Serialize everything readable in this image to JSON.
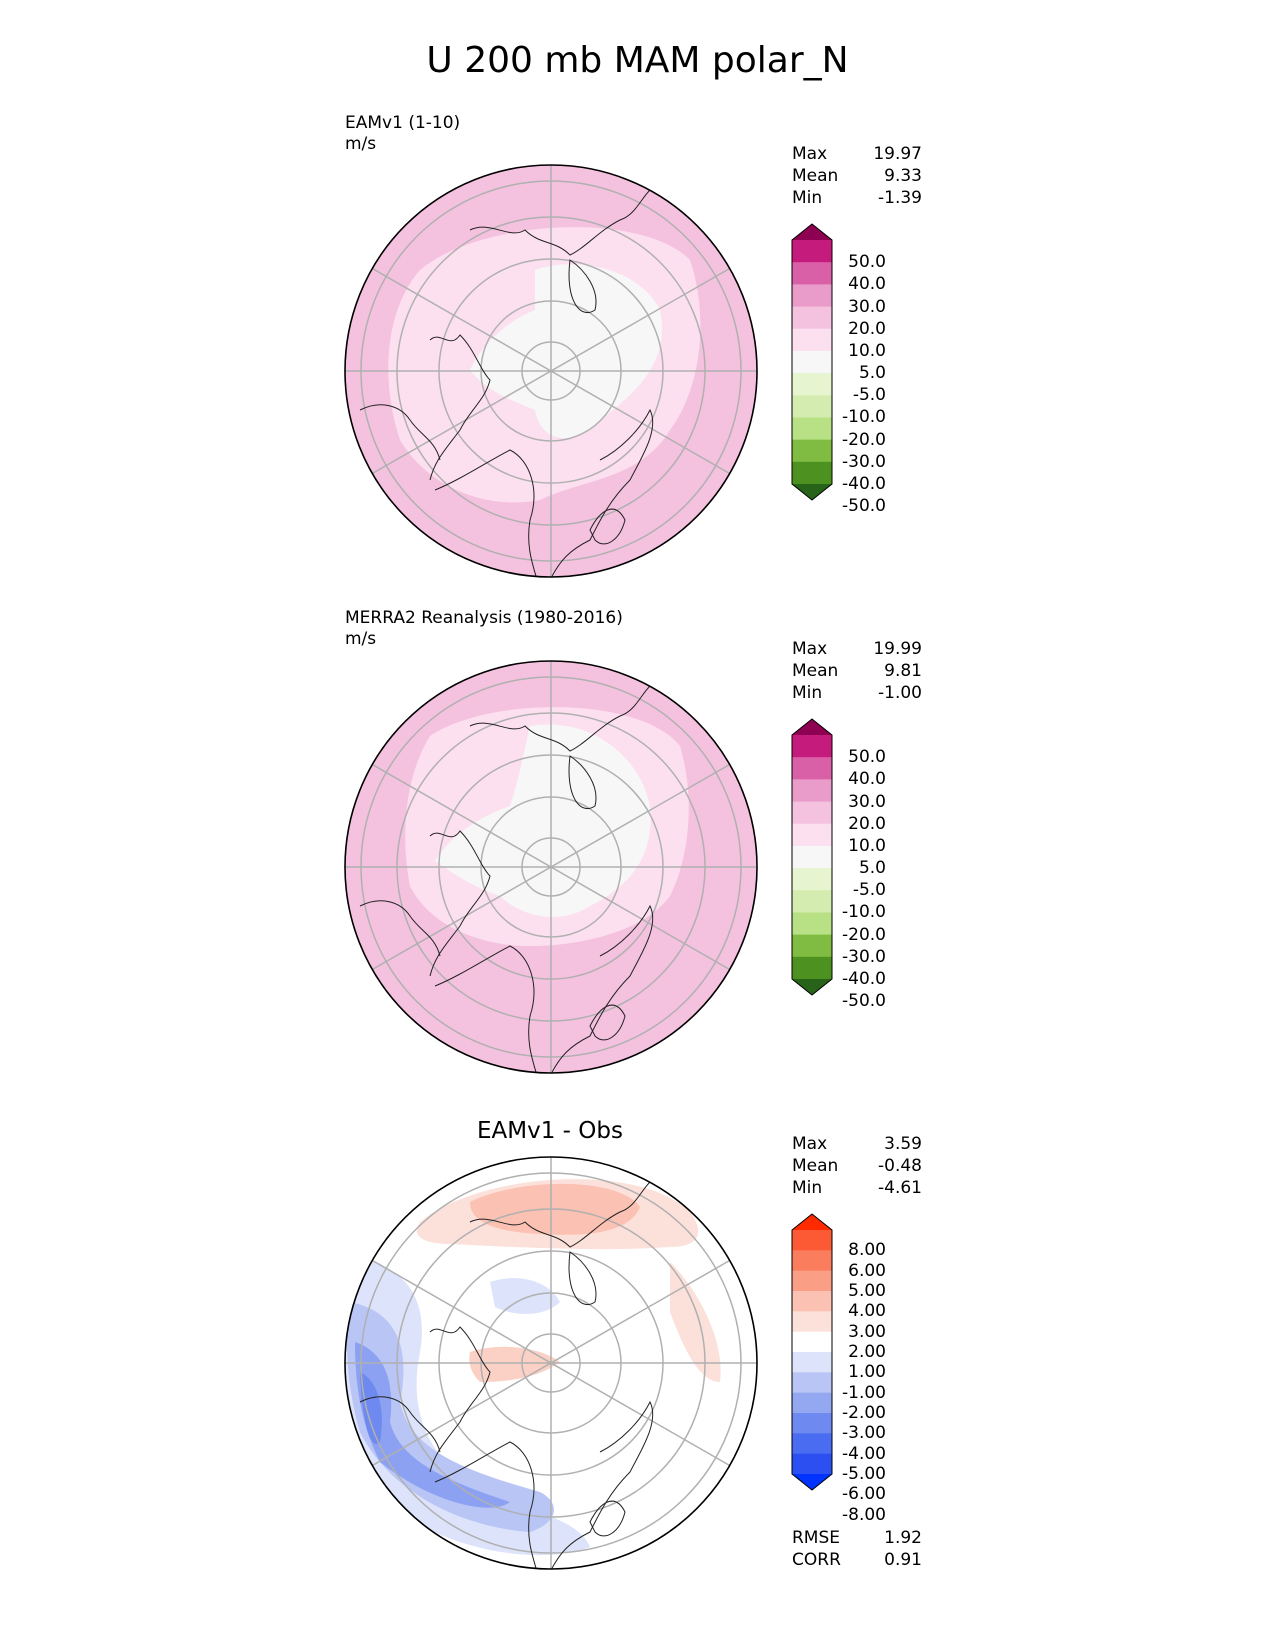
{
  "title": "U 200 mb MAM polar_N",
  "panels": [
    {
      "name": "test",
      "label_line1": "EAMv1 (1-10)",
      "label_line2": "m/s",
      "stats": [
        {
          "label": "Max",
          "value": "19.97"
        },
        {
          "label": "Mean",
          "value": "9.33"
        },
        {
          "label": "Min",
          "value": "-1.39"
        }
      ],
      "colorbar": {
        "colors": [
          "#276419",
          "#4d9221",
          "#7fbc41",
          "#b8e186",
          "#d5ecb0",
          "#e6f5d0",
          "#f7f7f7",
          "#fde0ef",
          "#f4c2df",
          "#e99bc9",
          "#d95fa6",
          "#c51b7d",
          "#8e0152"
        ],
        "labels": [
          "-50.0",
          "-40.0",
          "-30.0",
          "-20.0",
          "-10.0",
          "-5.0",
          "5.0",
          "10.0",
          "20.0",
          "30.0",
          "40.0",
          "50.0"
        ]
      }
    },
    {
      "name": "reference",
      "label_line1": "MERRA2 Reanalysis (1980-2016)",
      "label_line2": "m/s",
      "stats": [
        {
          "label": "Max",
          "value": "19.99"
        },
        {
          "label": "Mean",
          "value": "9.81"
        },
        {
          "label": "Min",
          "value": "-1.00"
        }
      ],
      "colorbar": {
        "colors": [
          "#276419",
          "#4d9221",
          "#7fbc41",
          "#b8e186",
          "#d5ecb0",
          "#e6f5d0",
          "#f7f7f7",
          "#fde0ef",
          "#f4c2df",
          "#e99bc9",
          "#d95fa6",
          "#c51b7d",
          "#8e0152"
        ],
        "labels": [
          "-50.0",
          "-40.0",
          "-30.0",
          "-20.0",
          "-10.0",
          "-5.0",
          "5.0",
          "10.0",
          "20.0",
          "30.0",
          "40.0",
          "50.0"
        ]
      }
    },
    {
      "name": "difference",
      "title": "EAMv1 - Obs",
      "stats": [
        {
          "label": "Max",
          "value": "3.59"
        },
        {
          "label": "Mean",
          "value": "-0.48"
        },
        {
          "label": "Min",
          "value": "-4.61"
        }
      ],
      "extra_stats": [
        {
          "label": "RMSE",
          "value": "1.92"
        },
        {
          "label": "CORR",
          "value": "0.91"
        }
      ],
      "colorbar": {
        "colors": [
          "#0033ff",
          "#2b4ff0",
          "#4a6cf0",
          "#6e89f0",
          "#94a8f2",
          "#b8c5f5",
          "#dde3fa",
          "#ffffff",
          "#fce0da",
          "#fbc1b2",
          "#fa9f85",
          "#fa7d5d",
          "#fb5a35",
          "#ff2a00"
        ],
        "labels": [
          "-8.00",
          "-6.00",
          "-5.00",
          "-4.00",
          "-3.00",
          "-2.00",
          "-1.00",
          "1.00",
          "2.00",
          "3.00",
          "4.00",
          "5.00",
          "6.00",
          "8.00"
        ]
      }
    }
  ]
}
